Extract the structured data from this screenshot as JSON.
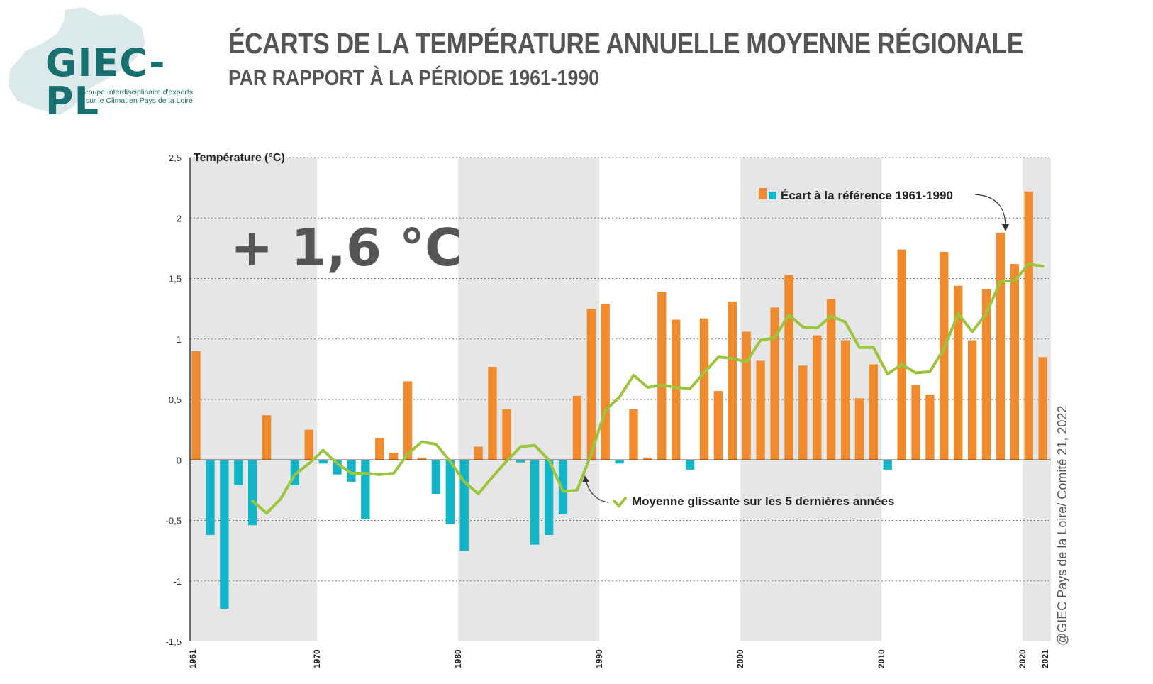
{
  "logo": {
    "name": "GIEC-PL",
    "subtitle_line1": "Groupe Interdisciplinaire d'experts",
    "subtitle_line2": "sur le Climat en Pays de la Loire"
  },
  "title": "ÉCARTS DE LA TEMPÉRATURE ANNUELLE MOYENNE RÉGIONALE",
  "subtitle": "PAR RAPPORT À LA PÉRIODE 1961-1990",
  "credit": "@GIEC Pays de la Loire/ Comité 21, 2022",
  "colors": {
    "positive": "#f08a2c",
    "negative": "#12b5c8",
    "line": "#9bc53d",
    "band": "#e6e6e6",
    "text": "#555555"
  },
  "chart_data": {
    "type": "bar",
    "ylabel": "Température (°C)",
    "ylim": [
      -1.5,
      2.5
    ],
    "yticks": [
      -1.5,
      -1,
      -0.5,
      0,
      0.5,
      1,
      1.5,
      2,
      2.5
    ],
    "ytick_labels": [
      "-1,5",
      "-1",
      "-0,5",
      "0",
      "0,5",
      "1",
      "1,5",
      "2",
      "2,5"
    ],
    "xticks": [
      1961,
      1970,
      1980,
      1990,
      2000,
      2010,
      2020,
      2021
    ],
    "shaded_decades": [
      [
        1961,
        1970
      ],
      [
        1980,
        1990
      ],
      [
        2000,
        2010
      ],
      [
        2020,
        2021
      ]
    ],
    "big_annotation": "+ 1,6 °C",
    "legend_bars": "Écart à la référence 1961-1990",
    "legend_line": "Moyenne glissante sur les 5 dernières années",
    "years": [
      1961,
      1962,
      1963,
      1964,
      1965,
      1966,
      1967,
      1968,
      1969,
      1970,
      1971,
      1972,
      1973,
      1974,
      1975,
      1976,
      1977,
      1978,
      1979,
      1980,
      1981,
      1982,
      1983,
      1984,
      1985,
      1986,
      1987,
      1988,
      1989,
      1990,
      1991,
      1992,
      1993,
      1994,
      1995,
      1996,
      1997,
      1998,
      1999,
      2000,
      2001,
      2002,
      2003,
      2004,
      2005,
      2006,
      2007,
      2008,
      2009,
      2010,
      2011,
      2012,
      2013,
      2014,
      2015,
      2016,
      2017,
      2018,
      2019,
      2020,
      2021
    ],
    "series": [
      {
        "name": "Écart à la référence 1961-1990",
        "values": [
          0.9,
          -0.62,
          -1.23,
          -0.21,
          -0.54,
          0.37,
          0.0,
          -0.21,
          0.25,
          -0.03,
          -0.12,
          -0.18,
          -0.49,
          0.18,
          0.06,
          0.65,
          0.02,
          -0.28,
          -0.53,
          -0.75,
          0.11,
          0.77,
          0.42,
          -0.02,
          -0.7,
          -0.62,
          -0.45,
          0.53,
          1.25,
          1.29,
          -0.03,
          0.42,
          0.02,
          1.39,
          1.16,
          -0.08,
          1.17,
          0.57,
          1.31,
          1.06,
          0.82,
          1.26,
          1.53,
          0.78,
          1.03,
          1.33,
          0.99,
          0.51,
          0.79,
          -0.08,
          1.74,
          0.62,
          0.54,
          1.72,
          1.44,
          0.99,
          1.41,
          1.88,
          1.62,
          2.22,
          0.85
        ]
      },
      {
        "name": "Moyenne glissante sur les 5 dernières années",
        "start_year": 1965,
        "values": [
          -0.34,
          -0.44,
          -0.32,
          -0.12,
          -0.03,
          0.08,
          -0.03,
          -0.11,
          -0.11,
          -0.12,
          -0.11,
          0.05,
          0.15,
          0.13,
          -0.01,
          -0.18,
          -0.28,
          -0.14,
          -0.01,
          0.11,
          0.12,
          0.0,
          -0.26,
          -0.25,
          0.05,
          0.41,
          0.52,
          0.7,
          0.6,
          0.62,
          0.6,
          0.59,
          0.72,
          0.85,
          0.84,
          0.81,
          0.99,
          1.01,
          1.2,
          1.1,
          1.09,
          1.19,
          1.14,
          0.93,
          0.93,
          0.71,
          0.79,
          0.72,
          0.73,
          0.92,
          1.21,
          1.06,
          1.21,
          1.48,
          1.48,
          1.62,
          1.6
        ]
      }
    ]
  }
}
